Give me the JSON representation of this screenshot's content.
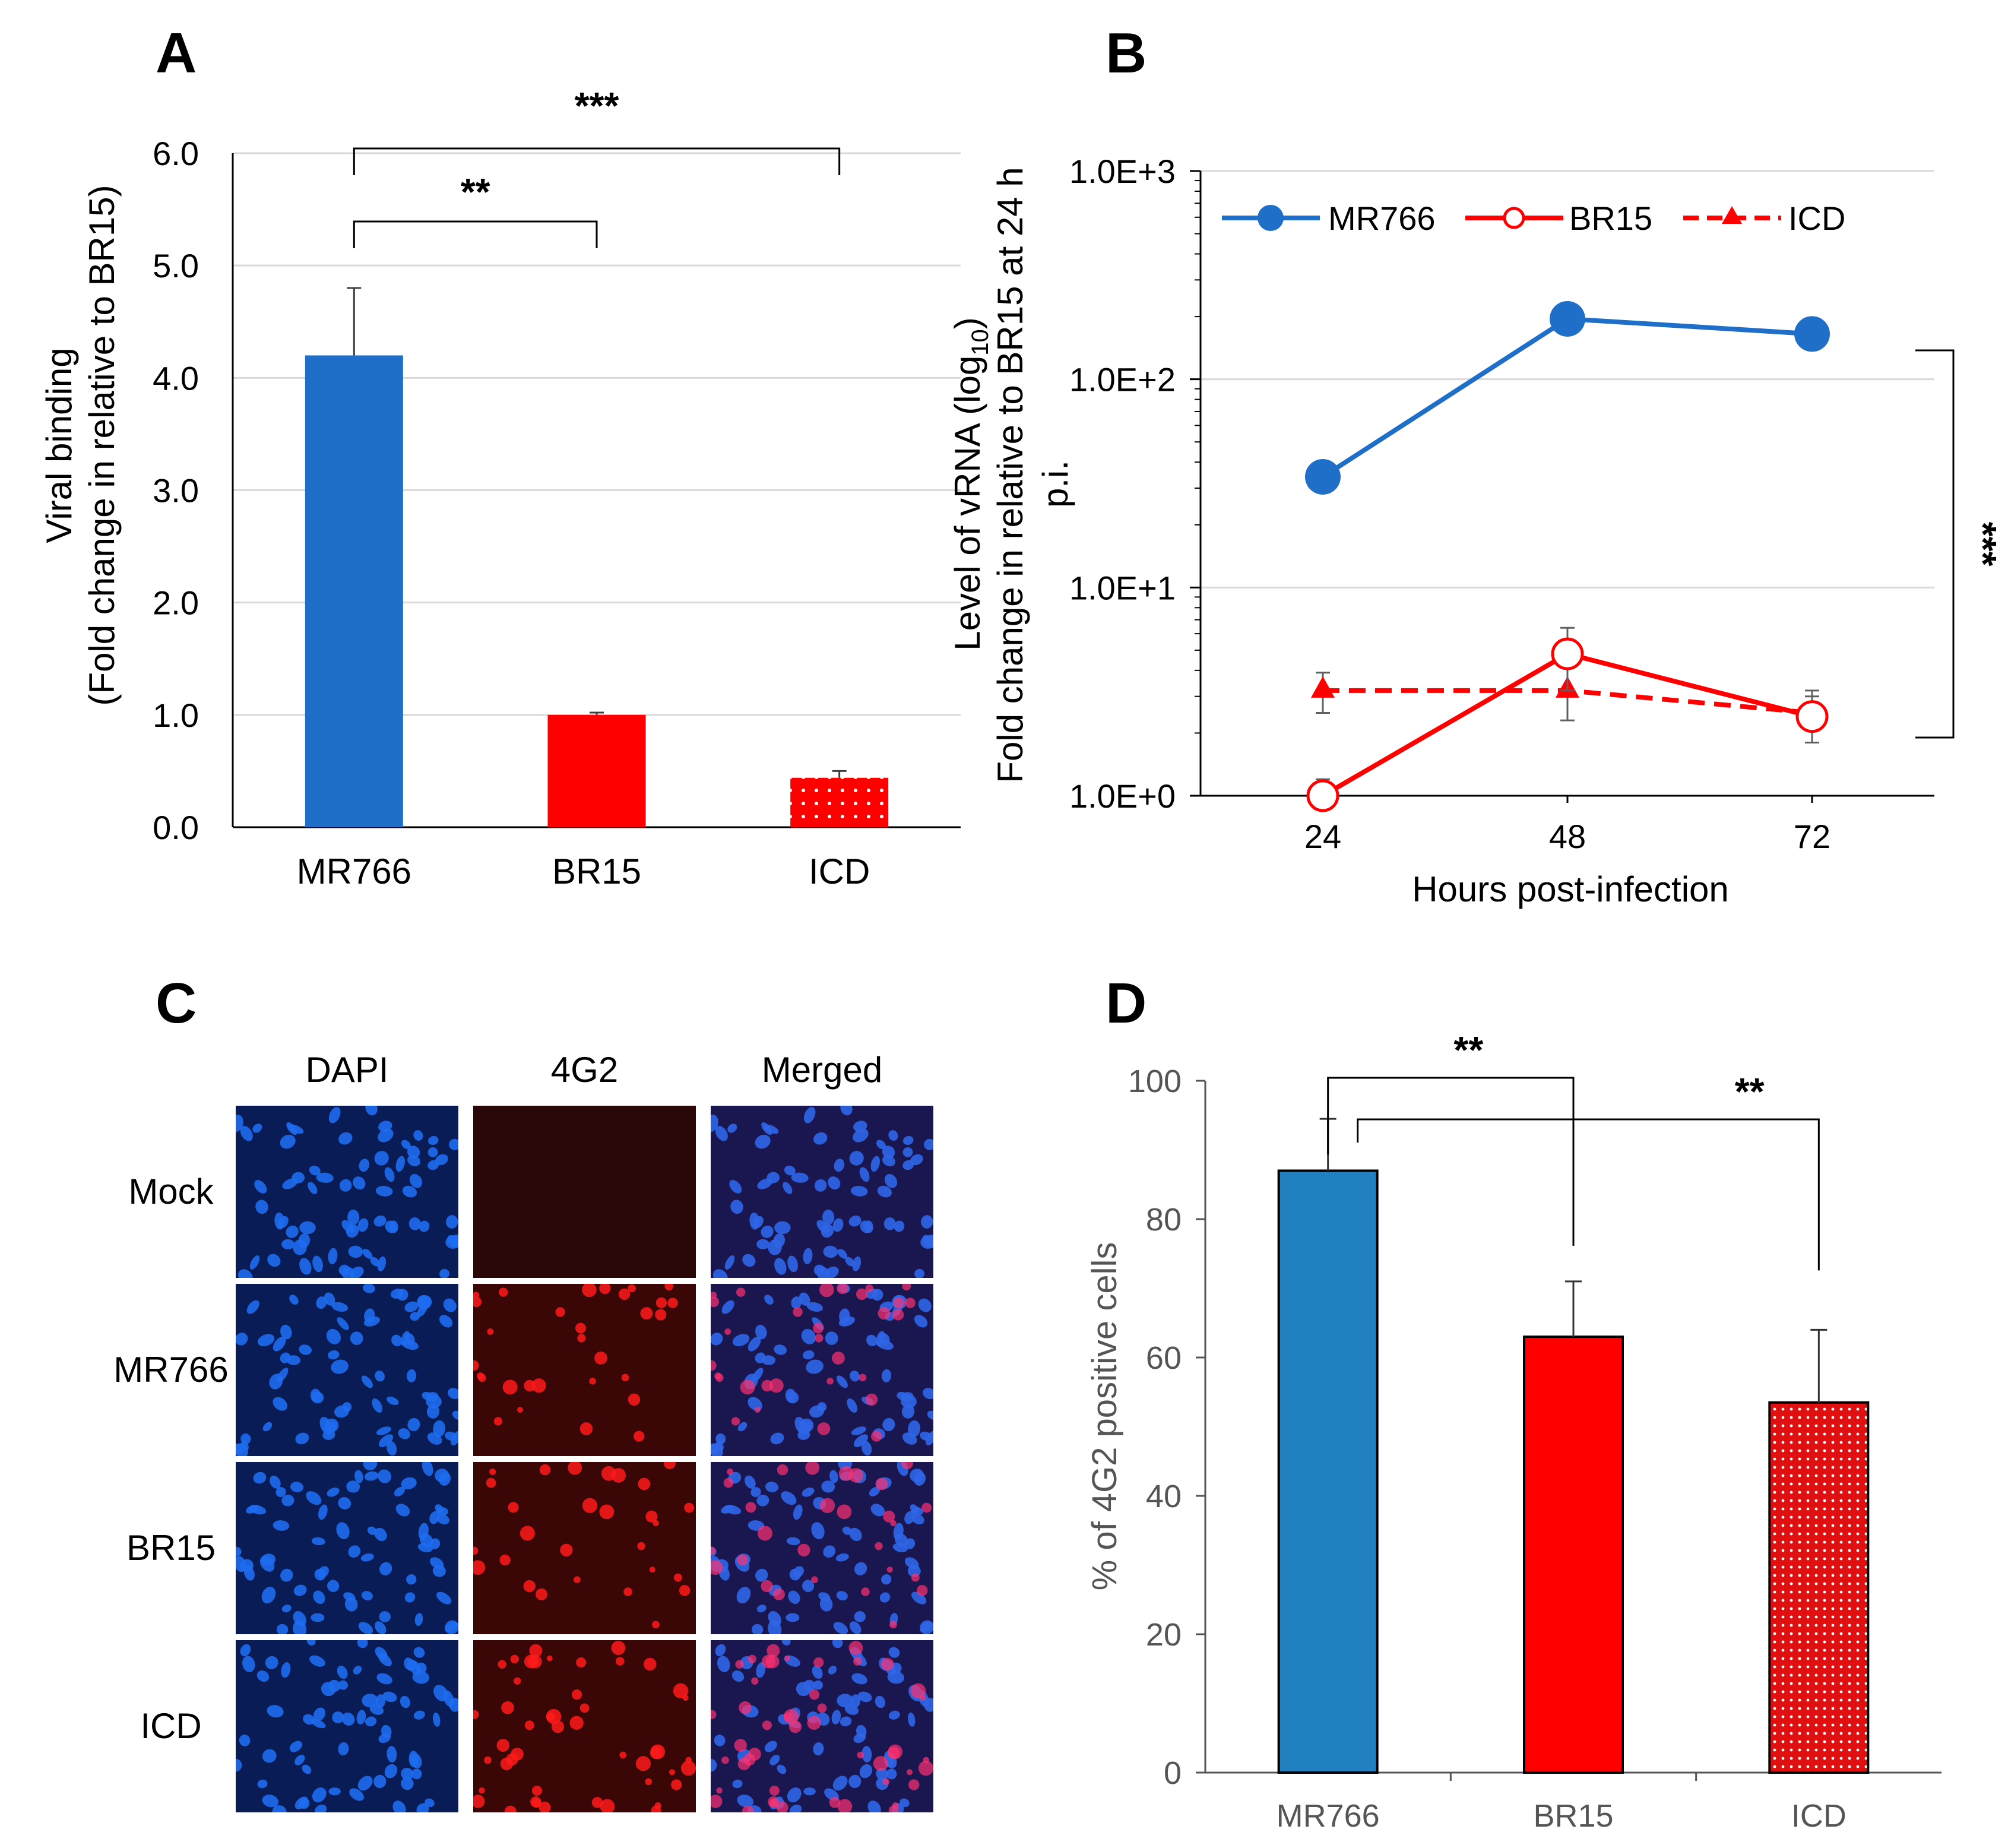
{
  "chart_data": [
    {
      "panel": "A",
      "type": "bar",
      "categories": [
        "MR766",
        "BR15",
        "ICD"
      ],
      "values": [
        4.2,
        1.0,
        0.44
      ],
      "errors": [
        0.6,
        0.02,
        0.06
      ],
      "colors": [
        "#1F6FC9",
        "#FF0000",
        "#FF0000"
      ],
      "patterns": [
        "solid",
        "solid",
        "dotted"
      ],
      "title": "",
      "xlabel": "",
      "ylabel": "Viral binding",
      "ylabel2": "(Fold change in relative to BR15)",
      "ylim": [
        0,
        6
      ],
      "yticks": [
        "0.0",
        "1.0",
        "2.0",
        "3.0",
        "4.0",
        "5.0",
        "6.0"
      ],
      "grid": true,
      "significance": [
        {
          "from": "MR766",
          "to": "BR15",
          "label": "**"
        },
        {
          "from": "MR766",
          "to": "ICD",
          "label": "***"
        }
      ]
    },
    {
      "panel": "B",
      "type": "line",
      "x": [
        24,
        48,
        72
      ],
      "xticks": [
        "24",
        "48",
        "72"
      ],
      "series": [
        {
          "name": "MR766",
          "values": [
            34,
            195,
            165
          ],
          "errors": [
            0,
            0,
            0
          ],
          "color": "#1F6FC9",
          "style": "solid",
          "marker": "filled-circle"
        },
        {
          "name": "BR15",
          "values": [
            1.0,
            4.8,
            2.4
          ],
          "errors": [
            0.2,
            1.6,
            0.6
          ],
          "color": "#FF0000",
          "style": "solid",
          "marker": "open-circle"
        },
        {
          "name": "ICD",
          "values": [
            3.2,
            3.2,
            2.5
          ],
          "errors": [
            0.7,
            0.9,
            0.7
          ],
          "color": "#FF0000",
          "style": "dashed",
          "marker": "triangle"
        }
      ],
      "yscale": "log",
      "ylim": [
        1,
        1000
      ],
      "yticks": [
        "1.0E+0",
        "1.0E+1",
        "1.0E+2",
        "1.0E+3"
      ],
      "xlabel": "Hours post-infection",
      "ylabel_line1": "Level of vRNA (log",
      "ylabel_sub": "10",
      "ylabel_line1_end": ")",
      "ylabel_line2": "Fold change in relative to BR15 at 24 h",
      "ylabel_line3": "p.i.",
      "legend_position": "top",
      "grid": true,
      "significance": [
        {
          "label": "***"
        }
      ]
    },
    {
      "panel": "D",
      "type": "bar",
      "categories": [
        "MR766",
        "BR15",
        "ICD"
      ],
      "values": [
        87,
        63,
        53.5
      ],
      "errors": [
        7.5,
        8,
        10.5
      ],
      "colors": [
        "#2180C0",
        "#FF0000",
        "#E01010"
      ],
      "patterns": [
        "solid",
        "solid",
        "dotted"
      ],
      "title": "",
      "xlabel": "",
      "ylabel": "% of 4G2 positive cells",
      "ylim": [
        0,
        100
      ],
      "yticks": [
        "0",
        "20",
        "40",
        "60",
        "80",
        "100"
      ],
      "grid": false,
      "significance": [
        {
          "from": "MR766",
          "to": "BR15",
          "label": "**"
        },
        {
          "from": "MR766",
          "to": "ICD",
          "label": "**"
        }
      ]
    }
  ],
  "panels": {
    "A": "A",
    "B": "B",
    "C": "C",
    "D": "D"
  },
  "microscopy": {
    "columns": [
      "DAPI",
      "4G2",
      "Merged"
    ],
    "rows": [
      "Mock",
      "MR766",
      "BR15",
      "ICD"
    ]
  }
}
